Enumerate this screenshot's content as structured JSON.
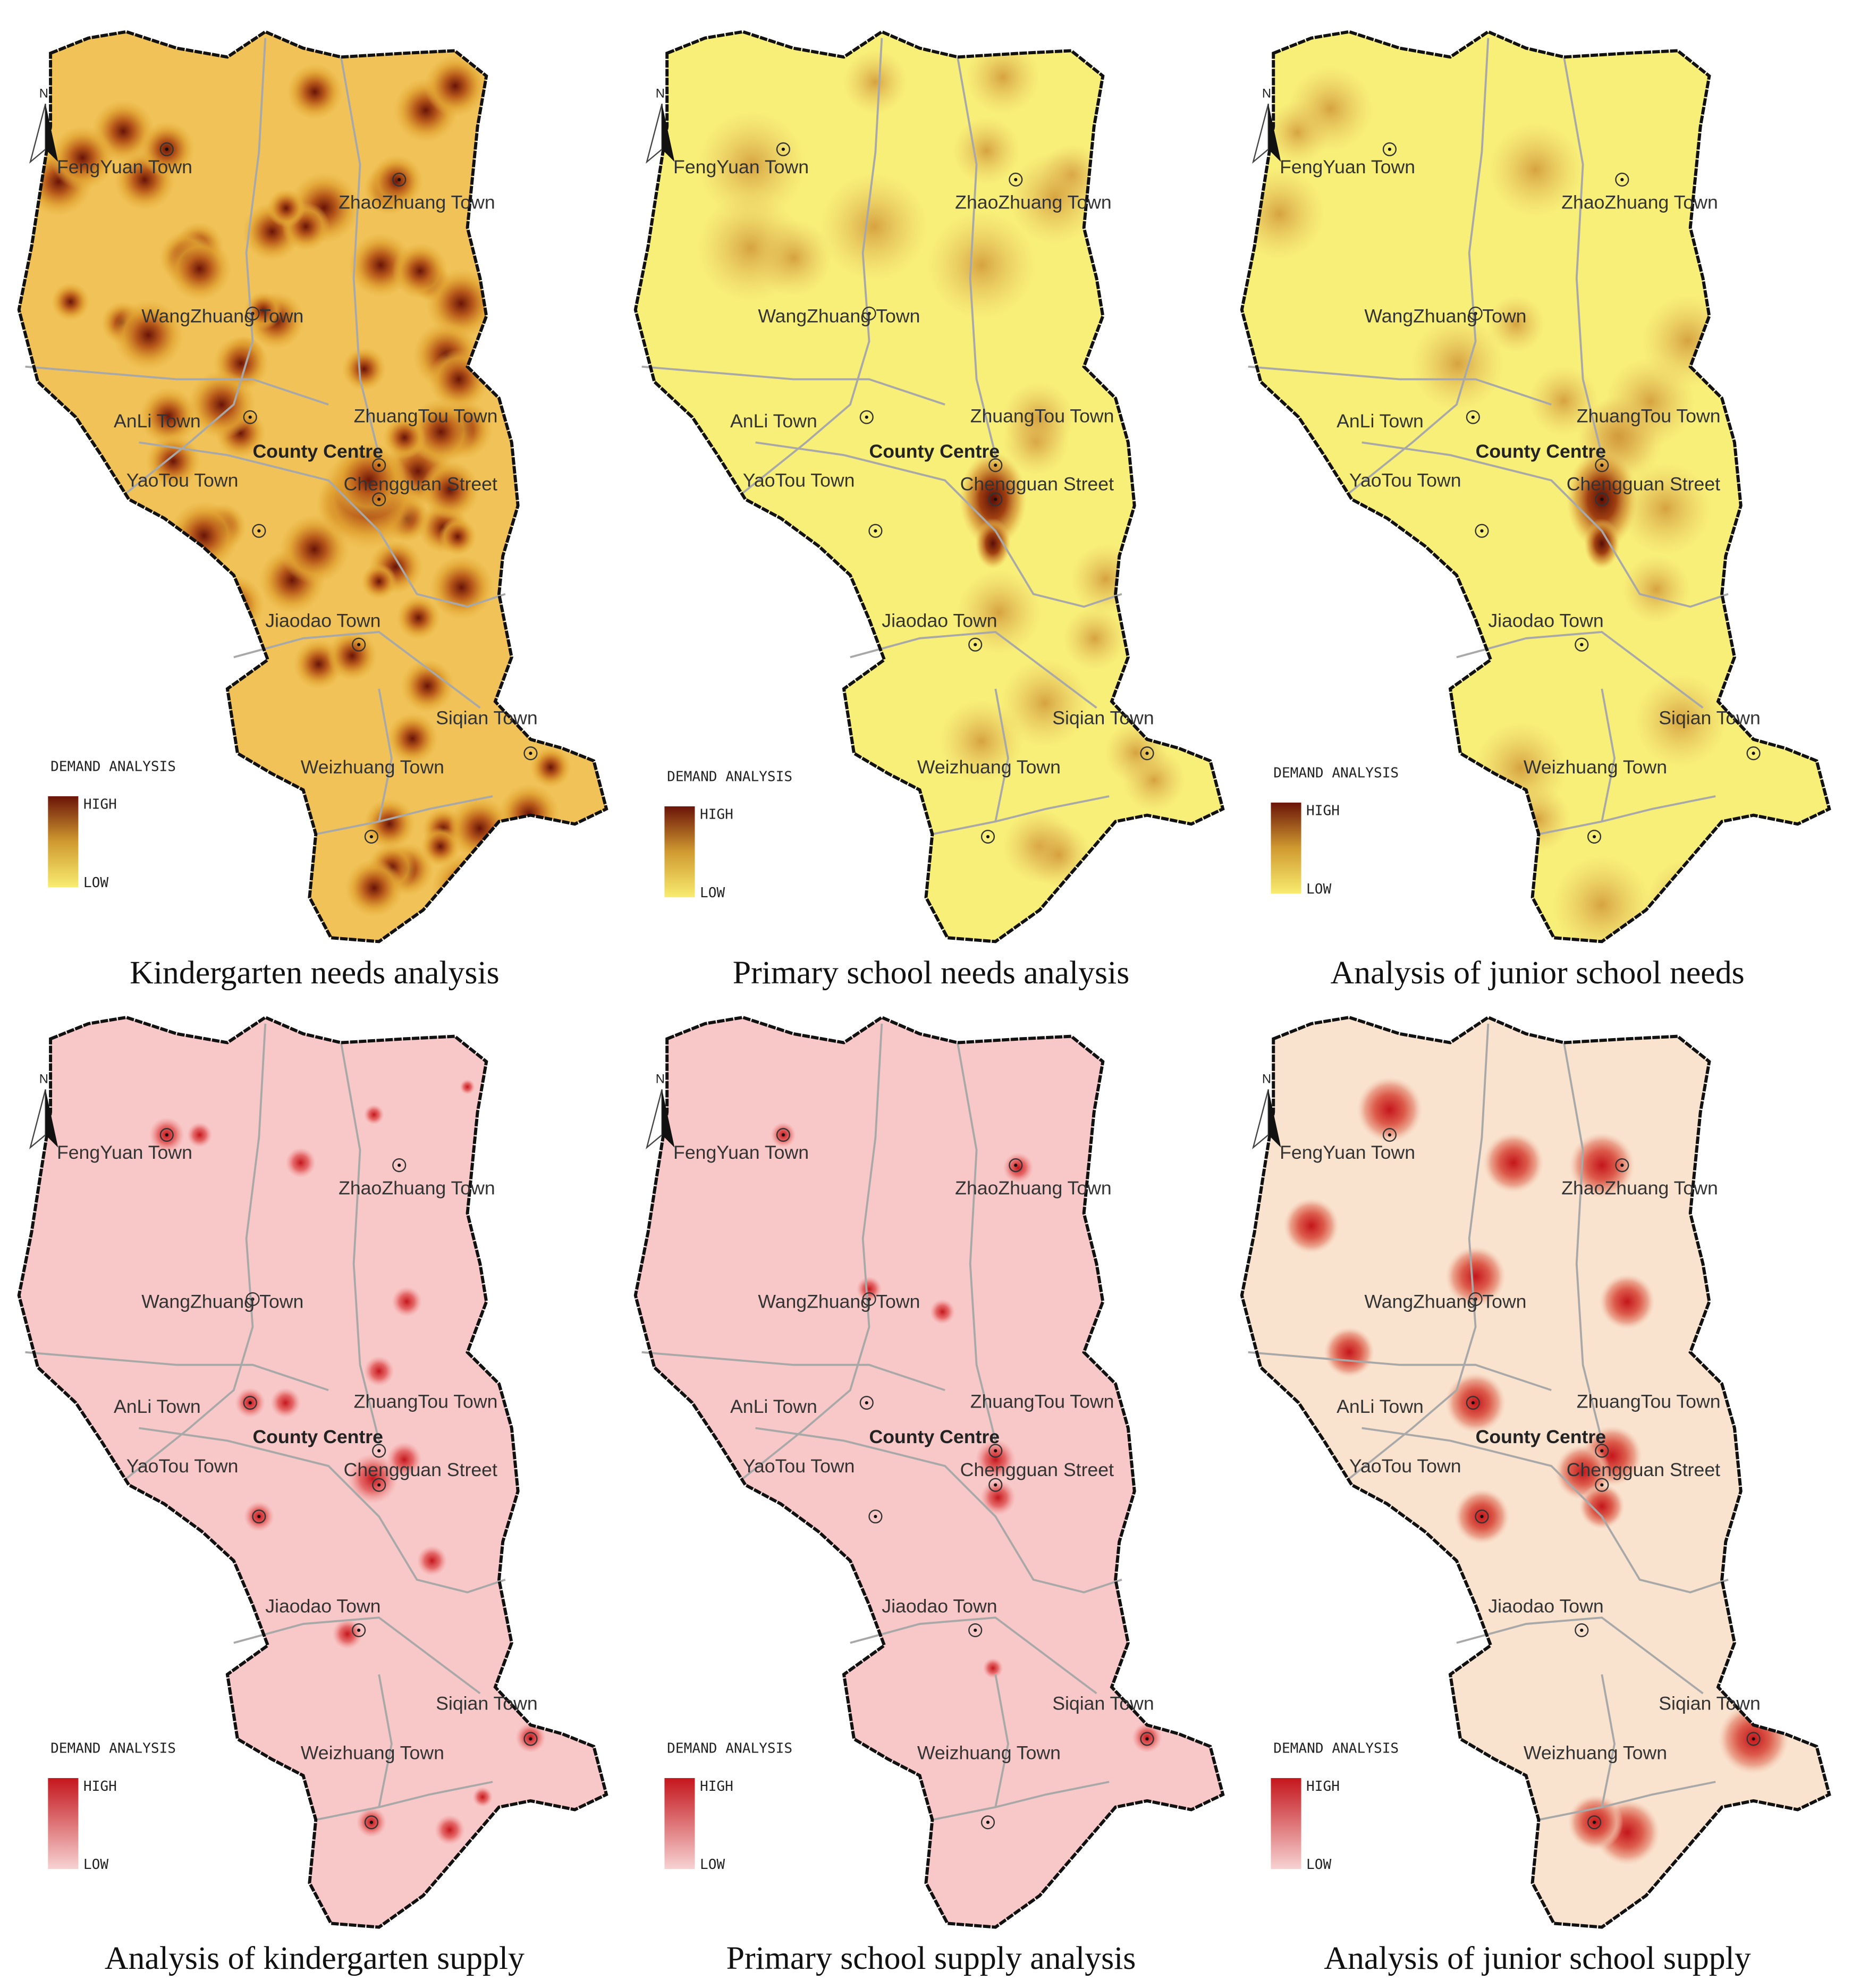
{
  "panels": [
    {
      "caption": "Kindergarten needs analysis"
    },
    {
      "caption": "Primary school needs analysis"
    },
    {
      "caption": "Analysis of junior school needs"
    },
    {
      "caption": "Analysis of kindergarten supply"
    },
    {
      "caption": "Primary school supply analysis"
    },
    {
      "caption": "Analysis of junior school supply"
    }
  ],
  "legend": {
    "title": "DEMAND ANALYSIS",
    "high": "HIGH",
    "low": "LOW"
  },
  "north": "N",
  "towns": [
    "FengYuan Town",
    "ZhaoZhuang Town",
    "WangZhuang Town",
    "AnLi Town",
    "ZhuangTou Town",
    "County Centre",
    "YaoTou Town",
    "Chengguan Street",
    "Jiaodao Town",
    "Siqian Town",
    "Weizhuang Town"
  ]
}
